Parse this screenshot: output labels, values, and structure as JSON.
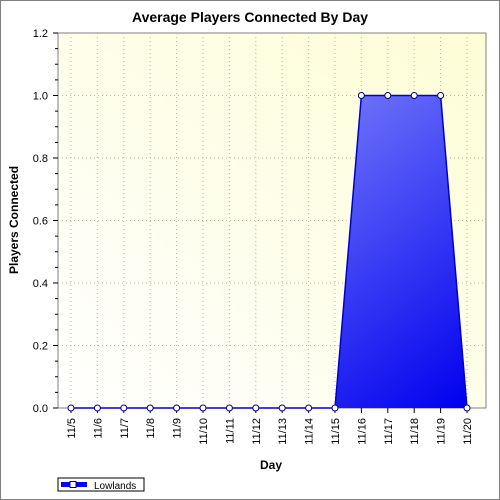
{
  "chart_data": {
    "type": "area",
    "title": "Average Players Connected By Day",
    "xlabel": "Day",
    "ylabel": "Players Connected",
    "categories": [
      "11/5",
      "11/6",
      "11/7",
      "11/8",
      "11/9",
      "11/10",
      "11/11",
      "11/12",
      "11/13",
      "11/14",
      "11/15",
      "11/16",
      "11/17",
      "11/18",
      "11/19",
      "11/20"
    ],
    "series": [
      {
        "name": "Lowlands",
        "values": [
          0,
          0,
          0,
          0,
          0,
          0,
          0,
          0,
          0,
          0,
          0,
          1.0,
          1.0,
          1.0,
          1.0,
          0
        ],
        "color": "#0000ff"
      }
    ],
    "ylim": [
      0,
      1.2
    ],
    "yticks": [
      "0.0",
      "0.2",
      "0.4",
      "0.6",
      "0.8",
      "1.0",
      "1.2"
    ],
    "grid": true,
    "legend": "bottom-left",
    "colors": {
      "plot_background_light": "#ffffff",
      "plot_background_warm": "#fdfdd5",
      "line": "#0000cc",
      "fill_top": "#a0a8ff",
      "fill_bottom": "#0000ee"
    }
  }
}
